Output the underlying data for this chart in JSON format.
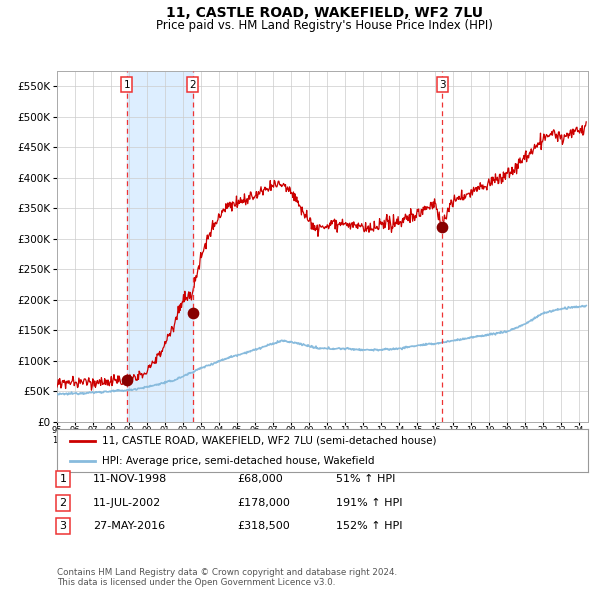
{
  "title": "11, CASTLE ROAD, WAKEFIELD, WF2 7LU",
  "subtitle": "Price paid vs. HM Land Registry's House Price Index (HPI)",
  "title_fontsize": 10,
  "subtitle_fontsize": 8.5,
  "ylim": [
    0,
    575000
  ],
  "yticks": [
    0,
    50000,
    100000,
    150000,
    200000,
    250000,
    300000,
    350000,
    400000,
    450000,
    500000,
    550000
  ],
  "ytick_labels": [
    "£0",
    "£50K",
    "£100K",
    "£150K",
    "£200K",
    "£250K",
    "£300K",
    "£350K",
    "£400K",
    "£450K",
    "£500K",
    "£550K"
  ],
  "background_color": "#ffffff",
  "plot_bg_color": "#ffffff",
  "shaded_region_color": "#ddeeff",
  "grid_color": "#cccccc",
  "hpi_line_color": "#88bbdd",
  "price_line_color": "#cc0000",
  "purchase_marker_color": "#880000",
  "dashed_line_color": "#ee3333",
  "purchase1_date": 1998.87,
  "purchase1_price": 68000,
  "purchase2_date": 2002.53,
  "purchase2_price": 178000,
  "purchase3_date": 2016.4,
  "purchase3_price": 318500,
  "legend_entry1": "11, CASTLE ROAD, WAKEFIELD, WF2 7LU (semi-detached house)",
  "legend_entry2": "HPI: Average price, semi-detached house, Wakefield",
  "table_rows": [
    [
      "1",
      "11-NOV-1998",
      "£68,000",
      "51% ↑ HPI"
    ],
    [
      "2",
      "11-JUL-2002",
      "£178,000",
      "191% ↑ HPI"
    ],
    [
      "3",
      "27-MAY-2016",
      "£318,500",
      "152% ↑ HPI"
    ]
  ],
  "footer_text": "Contains HM Land Registry data © Crown copyright and database right 2024.\nThis data is licensed under the Open Government Licence v3.0."
}
